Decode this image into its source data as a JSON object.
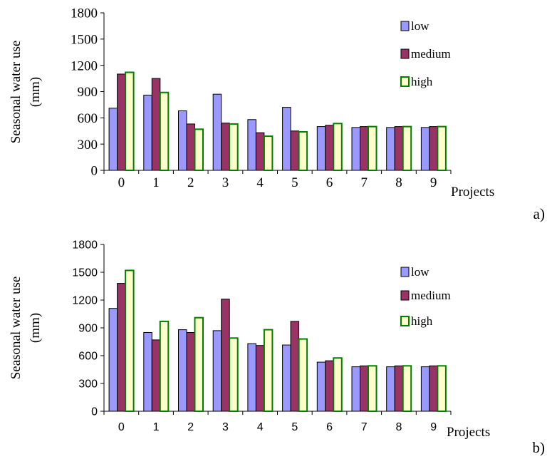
{
  "chart_data": [
    {
      "type": "bar",
      "panel_label": "a)",
      "xlabel": "Projects",
      "ylabel": "Seasonal water use",
      "ylabel_unit": "(mm)",
      "categories": [
        "0",
        "1",
        "2",
        "3",
        "4",
        "5",
        "6",
        "7",
        "8",
        "9"
      ],
      "ylim": [
        0,
        1800
      ],
      "yticks": [
        0,
        300,
        600,
        900,
        1200,
        1500,
        1800
      ],
      "grid": false,
      "legend_position": "top-right",
      "colors": {
        "low": "#9999ff",
        "medium": "#993366",
        "high": "#ffffcc",
        "high_border": "#008000"
      },
      "series": [
        {
          "name": "low",
          "values": [
            710,
            860,
            680,
            870,
            580,
            720,
            500,
            490,
            490,
            490
          ]
        },
        {
          "name": "medium",
          "values": [
            1100,
            1050,
            530,
            540,
            430,
            450,
            515,
            500,
            500,
            500
          ]
        },
        {
          "name": "high",
          "values": [
            1120,
            890,
            470,
            530,
            390,
            440,
            535,
            500,
            500,
            500
          ]
        }
      ]
    },
    {
      "type": "bar",
      "panel_label": "b)",
      "xlabel": "Projects",
      "ylabel": "Seasonal water use",
      "ylabel_unit": "(mm)",
      "categories": [
        "0",
        "1",
        "2",
        "3",
        "4",
        "5",
        "6",
        "7",
        "8",
        "9"
      ],
      "ylim": [
        0,
        1800
      ],
      "yticks": [
        0,
        300,
        600,
        900,
        1200,
        1500,
        1800
      ],
      "grid": false,
      "legend_position": "top-right",
      "colors": {
        "low": "#9999ff",
        "medium": "#993366",
        "high": "#ffffcc",
        "high_border": "#008000"
      },
      "series": [
        {
          "name": "low",
          "values": [
            1110,
            850,
            880,
            870,
            730,
            715,
            530,
            480,
            480,
            480
          ]
        },
        {
          "name": "medium",
          "values": [
            1380,
            770,
            850,
            1210,
            710,
            970,
            545,
            490,
            490,
            490
          ]
        },
        {
          "name": "high",
          "values": [
            1520,
            970,
            1010,
            790,
            880,
            780,
            575,
            490,
            490,
            490
          ]
        }
      ]
    }
  ]
}
